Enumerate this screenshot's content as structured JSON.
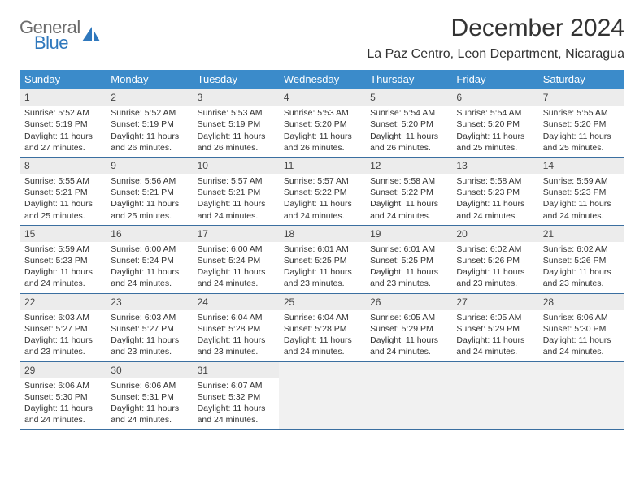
{
  "logo": {
    "line1": "General",
    "line2": "Blue",
    "accent_color": "#2f78bd",
    "gray": "#6b6b6b"
  },
  "title": "December 2024",
  "location": "La Paz Centro, Leon Department, Nicaragua",
  "header_bg": "#3b8bca",
  "daynum_bg": "#ececec",
  "border_color": "#3b6fa0",
  "weekdays": [
    "Sunday",
    "Monday",
    "Tuesday",
    "Wednesday",
    "Thursday",
    "Friday",
    "Saturday"
  ],
  "weeks": [
    [
      {
        "n": "1",
        "sr": "5:52 AM",
        "ss": "5:19 PM",
        "dl": "11 hours and 27 minutes."
      },
      {
        "n": "2",
        "sr": "5:52 AM",
        "ss": "5:19 PM",
        "dl": "11 hours and 26 minutes."
      },
      {
        "n": "3",
        "sr": "5:53 AM",
        "ss": "5:19 PM",
        "dl": "11 hours and 26 minutes."
      },
      {
        "n": "4",
        "sr": "5:53 AM",
        "ss": "5:20 PM",
        "dl": "11 hours and 26 minutes."
      },
      {
        "n": "5",
        "sr": "5:54 AM",
        "ss": "5:20 PM",
        "dl": "11 hours and 26 minutes."
      },
      {
        "n": "6",
        "sr": "5:54 AM",
        "ss": "5:20 PM",
        "dl": "11 hours and 25 minutes."
      },
      {
        "n": "7",
        "sr": "5:55 AM",
        "ss": "5:20 PM",
        "dl": "11 hours and 25 minutes."
      }
    ],
    [
      {
        "n": "8",
        "sr": "5:55 AM",
        "ss": "5:21 PM",
        "dl": "11 hours and 25 minutes."
      },
      {
        "n": "9",
        "sr": "5:56 AM",
        "ss": "5:21 PM",
        "dl": "11 hours and 25 minutes."
      },
      {
        "n": "10",
        "sr": "5:57 AM",
        "ss": "5:21 PM",
        "dl": "11 hours and 24 minutes."
      },
      {
        "n": "11",
        "sr": "5:57 AM",
        "ss": "5:22 PM",
        "dl": "11 hours and 24 minutes."
      },
      {
        "n": "12",
        "sr": "5:58 AM",
        "ss": "5:22 PM",
        "dl": "11 hours and 24 minutes."
      },
      {
        "n": "13",
        "sr": "5:58 AM",
        "ss": "5:23 PM",
        "dl": "11 hours and 24 minutes."
      },
      {
        "n": "14",
        "sr": "5:59 AM",
        "ss": "5:23 PM",
        "dl": "11 hours and 24 minutes."
      }
    ],
    [
      {
        "n": "15",
        "sr": "5:59 AM",
        "ss": "5:23 PM",
        "dl": "11 hours and 24 minutes."
      },
      {
        "n": "16",
        "sr": "6:00 AM",
        "ss": "5:24 PM",
        "dl": "11 hours and 24 minutes."
      },
      {
        "n": "17",
        "sr": "6:00 AM",
        "ss": "5:24 PM",
        "dl": "11 hours and 24 minutes."
      },
      {
        "n": "18",
        "sr": "6:01 AM",
        "ss": "5:25 PM",
        "dl": "11 hours and 23 minutes."
      },
      {
        "n": "19",
        "sr": "6:01 AM",
        "ss": "5:25 PM",
        "dl": "11 hours and 23 minutes."
      },
      {
        "n": "20",
        "sr": "6:02 AM",
        "ss": "5:26 PM",
        "dl": "11 hours and 23 minutes."
      },
      {
        "n": "21",
        "sr": "6:02 AM",
        "ss": "5:26 PM",
        "dl": "11 hours and 23 minutes."
      }
    ],
    [
      {
        "n": "22",
        "sr": "6:03 AM",
        "ss": "5:27 PM",
        "dl": "11 hours and 23 minutes."
      },
      {
        "n": "23",
        "sr": "6:03 AM",
        "ss": "5:27 PM",
        "dl": "11 hours and 23 minutes."
      },
      {
        "n": "24",
        "sr": "6:04 AM",
        "ss": "5:28 PM",
        "dl": "11 hours and 23 minutes."
      },
      {
        "n": "25",
        "sr": "6:04 AM",
        "ss": "5:28 PM",
        "dl": "11 hours and 24 minutes."
      },
      {
        "n": "26",
        "sr": "6:05 AM",
        "ss": "5:29 PM",
        "dl": "11 hours and 24 minutes."
      },
      {
        "n": "27",
        "sr": "6:05 AM",
        "ss": "5:29 PM",
        "dl": "11 hours and 24 minutes."
      },
      {
        "n": "28",
        "sr": "6:06 AM",
        "ss": "5:30 PM",
        "dl": "11 hours and 24 minutes."
      }
    ],
    [
      {
        "n": "29",
        "sr": "6:06 AM",
        "ss": "5:30 PM",
        "dl": "11 hours and 24 minutes."
      },
      {
        "n": "30",
        "sr": "6:06 AM",
        "ss": "5:31 PM",
        "dl": "11 hours and 24 minutes."
      },
      {
        "n": "31",
        "sr": "6:07 AM",
        "ss": "5:32 PM",
        "dl": "11 hours and 24 minutes."
      },
      null,
      null,
      null,
      null
    ]
  ],
  "labels": {
    "sunrise": "Sunrise:",
    "sunset": "Sunset:",
    "daylight": "Daylight:"
  }
}
